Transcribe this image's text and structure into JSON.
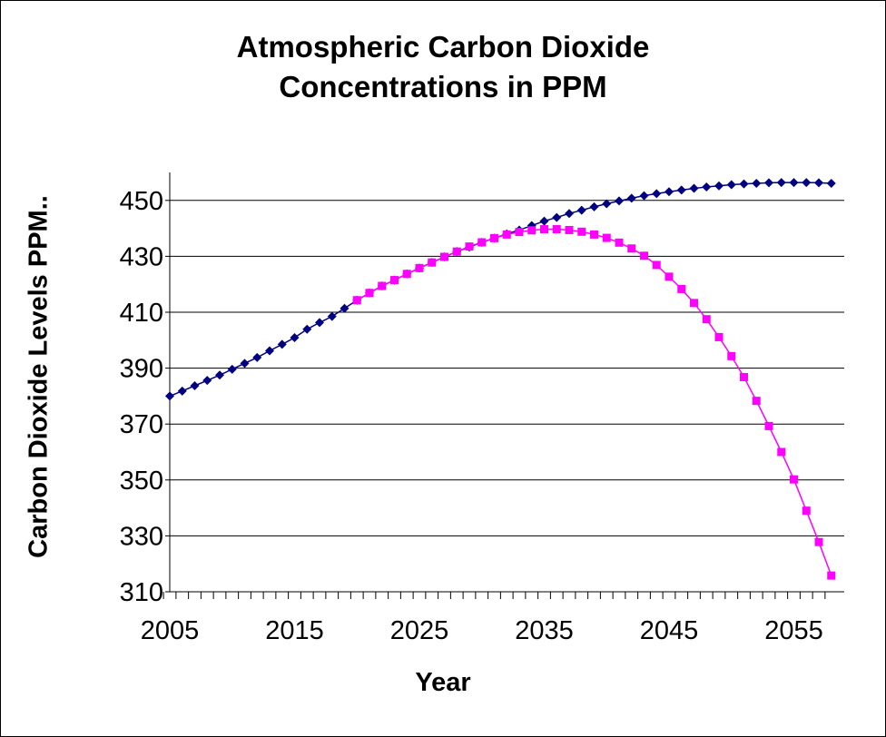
{
  "chart_data": {
    "type": "line",
    "title_line1": "Atmospheric Carbon Dioxide",
    "title_line2": "Concentrations in PPM",
    "xlabel": "Year",
    "ylabel": "Carbon Dioxide Levels PPM..",
    "xlim": [
      2005,
      2058
    ],
    "ylim": [
      310,
      460
    ],
    "yticks": [
      310,
      330,
      350,
      370,
      390,
      410,
      430,
      450
    ],
    "xticks": [
      2005,
      2015,
      2025,
      2035,
      2045,
      2055
    ],
    "grid": "horizontal",
    "legend": "none",
    "series": [
      {
        "color": "#000080",
        "marker": "diamond",
        "x": [
          2005,
          2006,
          2007,
          2008,
          2009,
          2010,
          2011,
          2012,
          2013,
          2014,
          2015,
          2016,
          2017,
          2018,
          2019,
          2020,
          2021,
          2022,
          2023,
          2024,
          2025,
          2026,
          2027,
          2028,
          2029,
          2030,
          2031,
          2032,
          2033,
          2034,
          2035,
          2036,
          2037,
          2038,
          2039,
          2040,
          2041,
          2042,
          2043,
          2044,
          2045,
          2046,
          2047,
          2048,
          2049,
          2050,
          2051,
          2052,
          2053,
          2054,
          2055,
          2056,
          2057,
          2058
        ],
        "values": [
          380,
          381.8,
          383.7,
          385.6,
          387.5,
          389.6,
          391.7,
          393.8,
          396.2,
          398.5,
          400.9,
          403.9,
          406.3,
          408.5,
          411.4,
          414.3,
          416.9,
          419.4,
          421.5,
          423.7,
          425.8,
          427.8,
          429.8,
          431.7,
          433.3,
          435,
          436.5,
          438,
          439.4,
          441,
          442.6,
          443.9,
          445.3,
          446.5,
          447.7,
          448.8,
          449.8,
          450.8,
          451.7,
          452.4,
          453.1,
          453.7,
          454.3,
          454.8,
          455.2,
          455.6,
          455.9,
          456.1,
          456.3,
          456.4,
          456.4,
          456.4,
          456.3,
          456.1
        ]
      },
      {
        "color": "#ff00ff",
        "marker": "square",
        "x": [
          2020,
          2021,
          2022,
          2023,
          2024,
          2025,
          2026,
          2027,
          2028,
          2029,
          2030,
          2031,
          2032,
          2033,
          2034,
          2035,
          2036,
          2037,
          2038,
          2039,
          2040,
          2041,
          2042,
          2043,
          2044,
          2045,
          2046,
          2047,
          2048,
          2049,
          2050,
          2051,
          2052,
          2053,
          2054,
          2055,
          2056,
          2057,
          2058
        ],
        "values": [
          414.3,
          416.9,
          419.4,
          421.5,
          423.7,
          425.8,
          427.8,
          429.8,
          431.7,
          433.5,
          435,
          436.5,
          437.8,
          438.7,
          439.3,
          439.7,
          439.7,
          439.4,
          438.8,
          437.8,
          436.6,
          434.9,
          432.8,
          430.2,
          426.9,
          422.7,
          418.3,
          413.3,
          407.5,
          401.1,
          394.3,
          386.8,
          378.3,
          369.3,
          360,
          350.2,
          339,
          327.8,
          315.8
        ]
      }
    ]
  }
}
